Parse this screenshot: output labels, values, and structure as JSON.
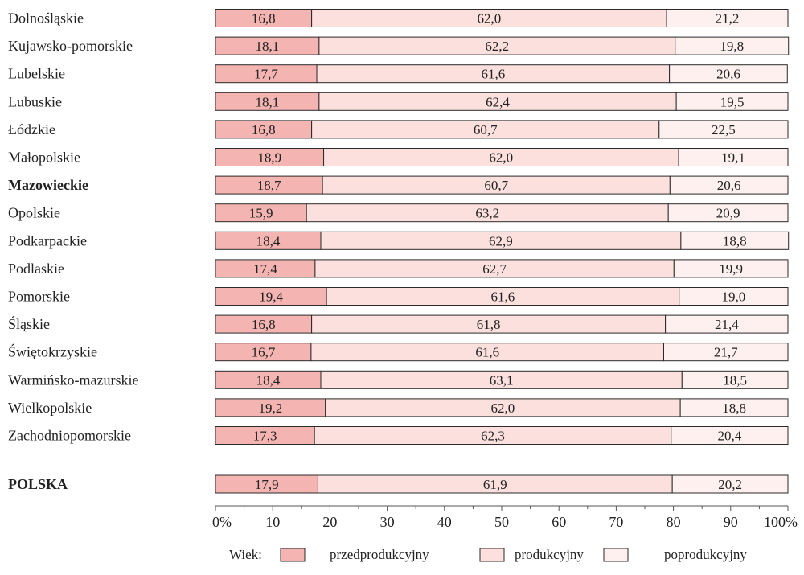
{
  "chart_data": {
    "type": "bar",
    "orientation": "horizontal",
    "stacked": true,
    "categories": [
      "Dolnośląskie",
      "Kujawsko-pomorskie",
      "Lubelskie",
      "Lubuskie",
      "Łódzkie",
      "Małopolskie",
      "Mazowieckie",
      "Opolskie",
      "Podkarpackie",
      "Podlaskie",
      "Pomorskie",
      "Śląskie",
      "Świętokrzyskie",
      "Warmińsko-mazurskie",
      "Wielkopolskie",
      "Zachodniopomorskie"
    ],
    "bold_categories": [
      "Mazowieckie"
    ],
    "series": [
      {
        "name": "przedprodukcyjny",
        "color": "#f4b5b2",
        "labels": [
          "16,8",
          "18,1",
          "17,7",
          "18,1",
          "16,8",
          "18,9",
          "18,7",
          "15,9",
          "18,4",
          "17,4",
          "19,4",
          "16,8",
          "16,7",
          "18,4",
          "19,2",
          "17,3"
        ],
        "values": [
          16.8,
          18.1,
          17.7,
          18.1,
          16.8,
          18.9,
          18.7,
          15.9,
          18.4,
          17.4,
          19.4,
          16.8,
          16.7,
          18.4,
          19.2,
          17.3
        ]
      },
      {
        "name": "produkcyjny",
        "color": "#fbe0dd",
        "labels": [
          "62,0",
          "62,2",
          "61,6",
          "62,4",
          "60,7",
          "62,0",
          "60,7",
          "63,2",
          "62,9",
          "62,7",
          "61,6",
          "61,8",
          "61,6",
          "63,1",
          "62,0",
          "62,3"
        ],
        "values": [
          62.0,
          62.2,
          61.6,
          62.4,
          60.7,
          62.0,
          60.7,
          63.2,
          62.9,
          62.7,
          61.6,
          61.8,
          61.6,
          63.1,
          62.0,
          62.3
        ]
      },
      {
        "name": "poprodukcyjny",
        "color": "#fdf0ee",
        "labels": [
          "21,2",
          "19,8",
          "20,6",
          "19,5",
          "22,5",
          "19,1",
          "20,6",
          "20,9",
          "18,8",
          "19,9",
          "19,0",
          "21,4",
          "21,7",
          "18,5",
          "18,8",
          "20,4"
        ],
        "values": [
          21.2,
          19.8,
          20.6,
          19.5,
          22.5,
          19.1,
          20.6,
          20.9,
          18.8,
          19.9,
          19.0,
          21.4,
          21.7,
          18.5,
          18.8,
          20.4
        ]
      }
    ],
    "total": {
      "label": "POLSKA",
      "bold": true,
      "labels": [
        "17,9",
        "61,9",
        "20,2"
      ],
      "values": [
        17.9,
        61.9,
        20.2
      ]
    },
    "x_ticks": [
      "0%",
      "10",
      "20",
      "30",
      "40",
      "50",
      "60",
      "70",
      "80",
      "90",
      "100%"
    ],
    "xlim": [
      0,
      100
    ],
    "legend": {
      "title": "Wiek:",
      "position": "bottom"
    }
  }
}
